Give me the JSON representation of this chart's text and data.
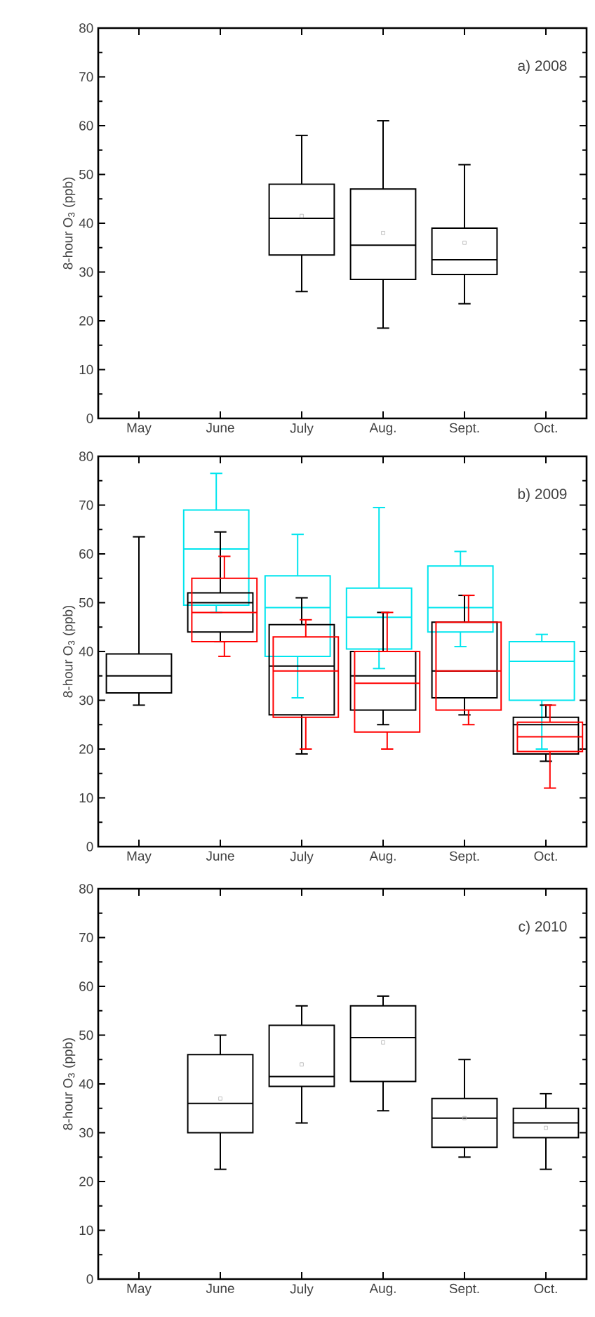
{
  "chart_data": [
    {
      "type": "box",
      "categories": [
        "May",
        "June",
        "July",
        "Aug.",
        "Sept.",
        "Oct."
      ],
      "ylabel": "8-hour O$_{3}$ (ppb)",
      "annotations": [
        "a) 2008"
      ],
      "ylim": [
        0,
        80
      ],
      "yticks": [
        0,
        10,
        20,
        30,
        40,
        50,
        60,
        70,
        80
      ],
      "series": [
        {
          "color": "#000000",
          "boxes": [
            null,
            null,
            {
              "low": 26,
              "q1": 33.5,
              "median": 41,
              "q3": 48,
              "high": 58,
              "mean": 41.5
            },
            {
              "low": 18.5,
              "q1": 28.5,
              "median": 35.5,
              "q3": 47,
              "high": 61,
              "mean": 38
            },
            {
              "low": 23.5,
              "q1": 29.5,
              "median": 32.5,
              "q3": 39,
              "high": 52,
              "mean": 36
            },
            null
          ]
        }
      ]
    },
    {
      "type": "box",
      "categories": [
        "May",
        "June",
        "July",
        "Aug.",
        "Sept.",
        "Oct."
      ],
      "ylabel": "8-hour O$_{3}$ (ppb)",
      "annotations": [
        "b) 2009"
      ],
      "ylim": [
        0,
        80
      ],
      "yticks": [
        0,
        10,
        20,
        30,
        40,
        50,
        60,
        70,
        80
      ],
      "series": [
        {
          "color": "#00e5ee",
          "boxes": [
            null,
            {
              "low": 48,
              "q1": 49.5,
              "median": 61,
              "q3": 69,
              "high": 76.5
            },
            {
              "low": 30.5,
              "q1": 39,
              "median": 49,
              "q3": 55.5,
              "high": 64
            },
            {
              "low": 36.5,
              "q1": 40.5,
              "median": 47,
              "q3": 53,
              "high": 69.5
            },
            {
              "low": 41,
              "q1": 44,
              "median": 49,
              "q3": 57.5,
              "high": 60.5
            },
            {
              "low": 20,
              "q1": 30,
              "median": 38,
              "q3": 42,
              "high": 43.5
            }
          ]
        },
        {
          "color": "#000000",
          "boxes": [
            {
              "low": 29,
              "q1": 31.5,
              "median": 35,
              "q3": 39.5,
              "high": 63.5
            },
            {
              "low": 42,
              "q1": 44,
              "median": 50,
              "q3": 52,
              "high": 64.5
            },
            {
              "low": 19,
              "q1": 27,
              "median": 37,
              "q3": 45.5,
              "high": 51
            },
            {
              "low": 25,
              "q1": 28,
              "median": 35,
              "q3": 40,
              "high": 48
            },
            {
              "low": 27,
              "q1": 30.5,
              "median": 36,
              "q3": 46,
              "high": 51.5
            },
            {
              "low": 17.5,
              "q1": 19,
              "median": 25,
              "q3": 26.5,
              "high": 29
            }
          ]
        },
        {
          "color": "#ff0000",
          "boxes": [
            null,
            {
              "low": 39,
              "q1": 42,
              "median": 48,
              "q3": 55,
              "high": 59.5
            },
            {
              "low": 20,
              "q1": 26.5,
              "median": 36,
              "q3": 43,
              "high": 46.5
            },
            {
              "low": 20,
              "q1": 23.5,
              "median": 33.5,
              "q3": 40,
              "high": 48
            },
            {
              "low": 25,
              "q1": 28,
              "median": 36,
              "q3": 46,
              "high": 51.5
            },
            {
              "low": 12,
              "q1": 19.5,
              "median": 22.5,
              "q3": 25.5,
              "high": 29
            }
          ]
        }
      ]
    },
    {
      "type": "box",
      "categories": [
        "May",
        "June",
        "July",
        "Aug.",
        "Sept.",
        "Oct."
      ],
      "ylabel": "8-hour O$_{3}$ (ppb)",
      "annotations": [
        "c) 2010"
      ],
      "ylim": [
        0,
        80
      ],
      "yticks": [
        0,
        10,
        20,
        30,
        40,
        50,
        60,
        70,
        80
      ],
      "series": [
        {
          "color": "#000000",
          "boxes": [
            null,
            {
              "low": 22.5,
              "q1": 30,
              "median": 36,
              "q3": 46,
              "high": 50,
              "mean": 37
            },
            {
              "low": 32,
              "q1": 39.5,
              "median": 41.5,
              "q3": 52,
              "high": 56,
              "mean": 44
            },
            {
              "low": 34.5,
              "q1": 40.5,
              "median": 49.5,
              "q3": 56,
              "high": 58,
              "mean": 48.5
            },
            {
              "low": 25,
              "q1": 27,
              "median": 33,
              "q3": 37,
              "high": 45,
              "mean": 33
            },
            {
              "low": 22.5,
              "q1": 29,
              "median": 32,
              "q3": 35,
              "high": 38,
              "mean": 31
            }
          ]
        }
      ]
    }
  ]
}
